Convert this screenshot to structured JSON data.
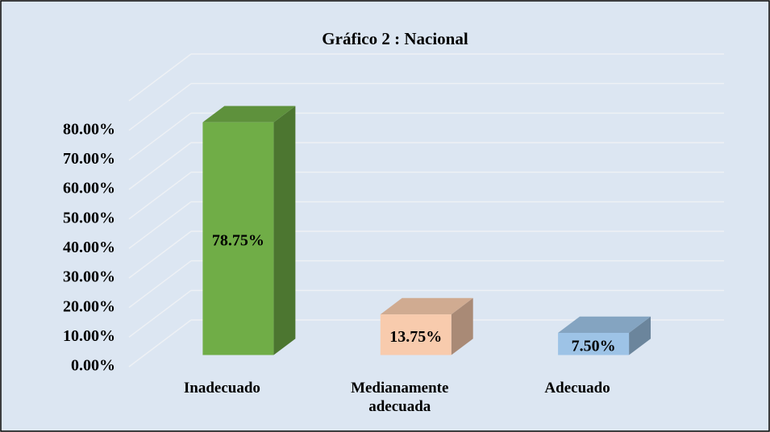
{
  "chart_data": {
    "type": "bar3d",
    "title": "Gráfico 2 : Nacional",
    "categories": [
      "Inadecuado",
      "Medianamente adecuada",
      "Adecuado"
    ],
    "values": [
      78.75,
      13.75,
      7.5
    ],
    "value_labels": [
      "78.75%",
      "13.75%",
      "7.50%"
    ],
    "colors": [
      "#70ad47",
      "#f8cbad",
      "#9dc3e6"
    ],
    "ylim": [
      0,
      90
    ],
    "yticks": [
      {
        "value": 0,
        "label": "0.00%"
      },
      {
        "value": 10,
        "label": "10.00%"
      },
      {
        "value": 20,
        "label": "20.00%"
      },
      {
        "value": 30,
        "label": "30.00%"
      },
      {
        "value": 40,
        "label": "40.00%"
      },
      {
        "value": 50,
        "label": "50.00%"
      },
      {
        "value": 60,
        "label": "60.00%"
      },
      {
        "value": 70,
        "label": "70.00%"
      },
      {
        "value": 80,
        "label": "80.00%"
      }
    ],
    "grid": true
  }
}
